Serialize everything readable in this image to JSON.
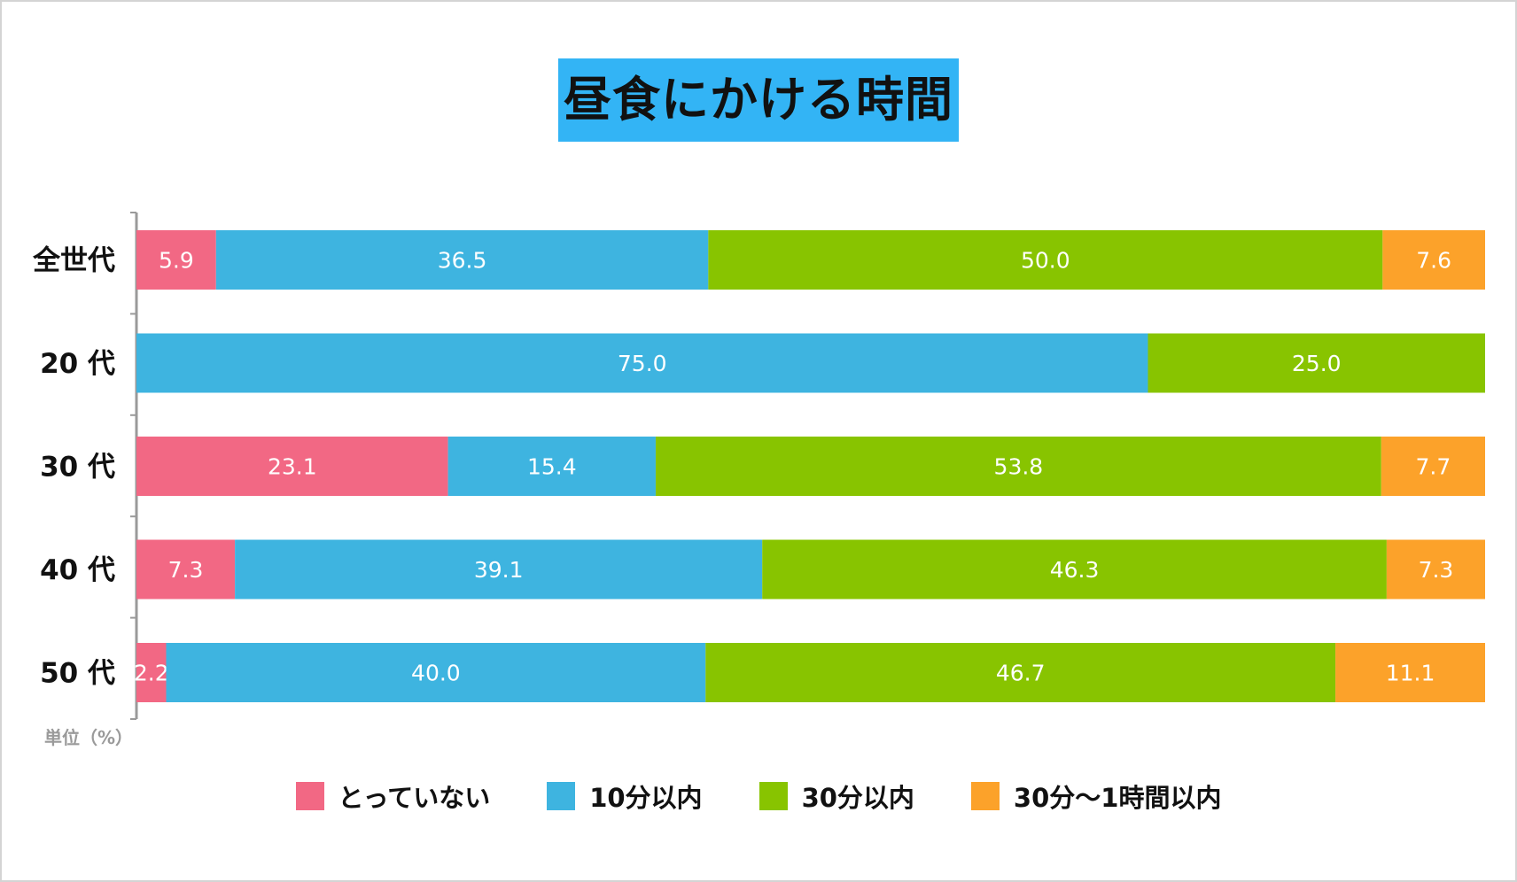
{
  "chart_data": {
    "type": "bar",
    "orientation": "horizontal",
    "stacked": true,
    "title": "昼食にかける時間",
    "unit_label": "単位（%）",
    "categories": [
      "全世代",
      "20 代",
      "30 代",
      "40 代",
      "50 代"
    ],
    "series": [
      {
        "name": "とっていない",
        "color": "#f26884",
        "values": [
          5.9,
          0,
          23.1,
          7.3,
          2.2
        ],
        "labels": [
          "5.9",
          "",
          "23.1",
          "7.3",
          "2.2"
        ]
      },
      {
        "name": "10分以内",
        "color": "#3eb4e0",
        "values": [
          36.5,
          75.0,
          15.4,
          39.1,
          40.0
        ],
        "labels": [
          "36.5",
          "75.0",
          "15.4",
          "39.1",
          "40.0"
        ]
      },
      {
        "name": "30分以内",
        "color": "#88c400",
        "values": [
          50.0,
          25.0,
          53.8,
          46.3,
          46.7
        ],
        "labels": [
          "50.0",
          "25.0",
          "53.8",
          "46.3",
          "46.7"
        ]
      },
      {
        "name": "30分〜1時間以内",
        "color": "#fca22a",
        "values": [
          7.6,
          0,
          7.7,
          7.3,
          11.1
        ],
        "labels": [
          "7.6",
          "",
          "7.7",
          "7.3",
          "11.1"
        ]
      }
    ],
    "xlim": [
      0,
      100
    ],
    "grid": false,
    "legend_position": "bottom"
  }
}
